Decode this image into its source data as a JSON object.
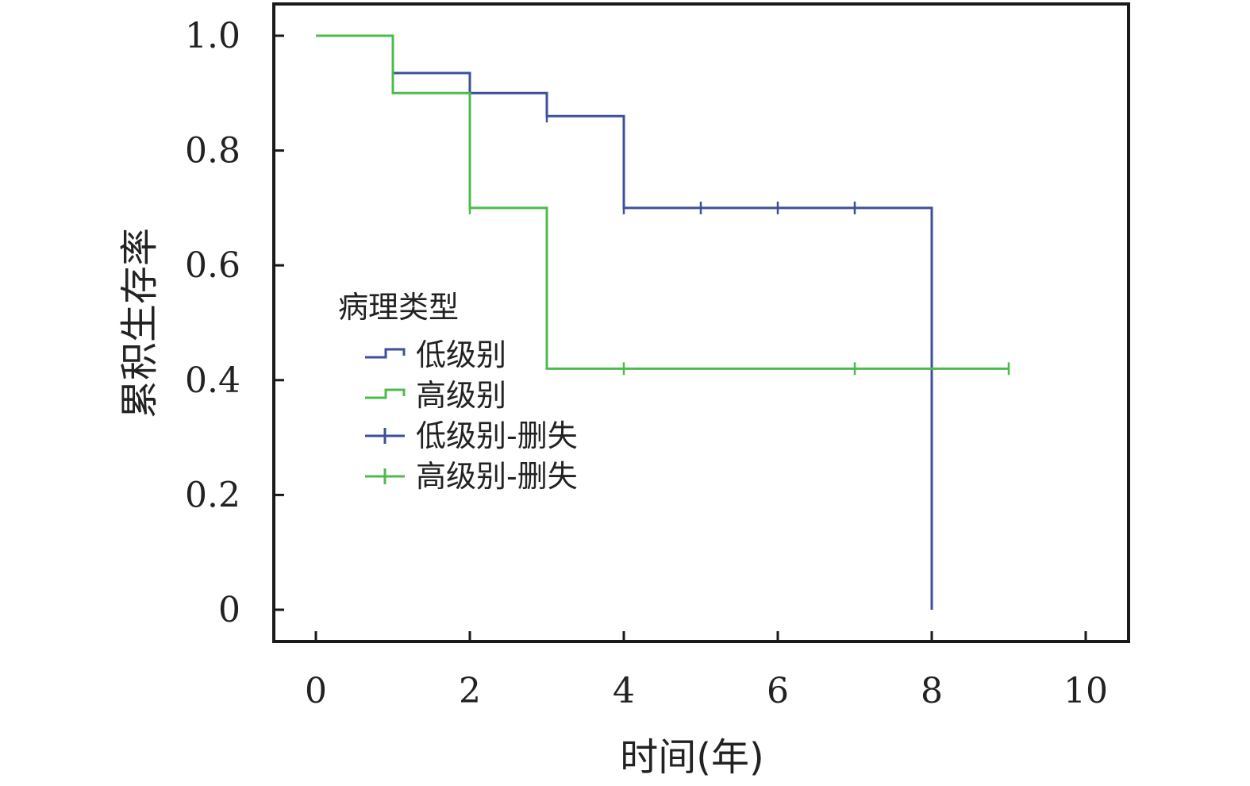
{
  "chart_data": {
    "type": "line",
    "title": "",
    "xlabel": "时间(年)",
    "ylabel": "累积生存率",
    "xlim": [
      0,
      10
    ],
    "ylim": [
      0,
      1.0
    ],
    "x_ticks": [
      0,
      2,
      4,
      6,
      8,
      10
    ],
    "x_tick_labels": [
      "0",
      "2",
      "4",
      "6",
      "8",
      "10"
    ],
    "y_ticks": [
      0,
      0.2,
      0.4,
      0.6,
      0.8,
      1.0
    ],
    "y_tick_labels": [
      "0",
      "0.2",
      "0.4",
      "0.6",
      "0.8",
      "1.0"
    ],
    "grid": false,
    "legend": {
      "title": "病理类型",
      "placement": "center-left",
      "entries": [
        {
          "label": "低级别",
          "kind": "step",
          "color": "#3d4f9a"
        },
        {
          "label": "高级别",
          "kind": "step",
          "color": "#4cbb4c"
        },
        {
          "label": "低级别-删失",
          "kind": "censor",
          "color": "#3d4f9a"
        },
        {
          "label": "高级别-删失",
          "kind": "censor",
          "color": "#4cbb4c"
        }
      ]
    },
    "series": [
      {
        "name": "低级别",
        "color": "#3d4f9a",
        "steps": [
          [
            1,
            0.935
          ],
          [
            2,
            0.9
          ],
          [
            3,
            0.86
          ],
          [
            4,
            0.7
          ],
          [
            8,
            0.7
          ],
          [
            8,
            0
          ]
        ],
        "censored": [
          [
            2,
            0.9
          ],
          [
            3,
            0.86
          ],
          [
            4,
            0.7
          ],
          [
            5,
            0.7
          ],
          [
            6,
            0.7
          ],
          [
            7,
            0.7
          ]
        ]
      },
      {
        "name": "高级别",
        "color": "#4cbb4c",
        "steps": [
          [
            0,
            1.0
          ],
          [
            1,
            0.9
          ],
          [
            2,
            0.7
          ],
          [
            3,
            0.42
          ],
          [
            9,
            0.42
          ]
        ],
        "censored": [
          [
            2,
            0.7
          ],
          [
            4,
            0.42
          ],
          [
            7,
            0.42
          ],
          [
            9,
            0.42
          ]
        ]
      }
    ]
  }
}
